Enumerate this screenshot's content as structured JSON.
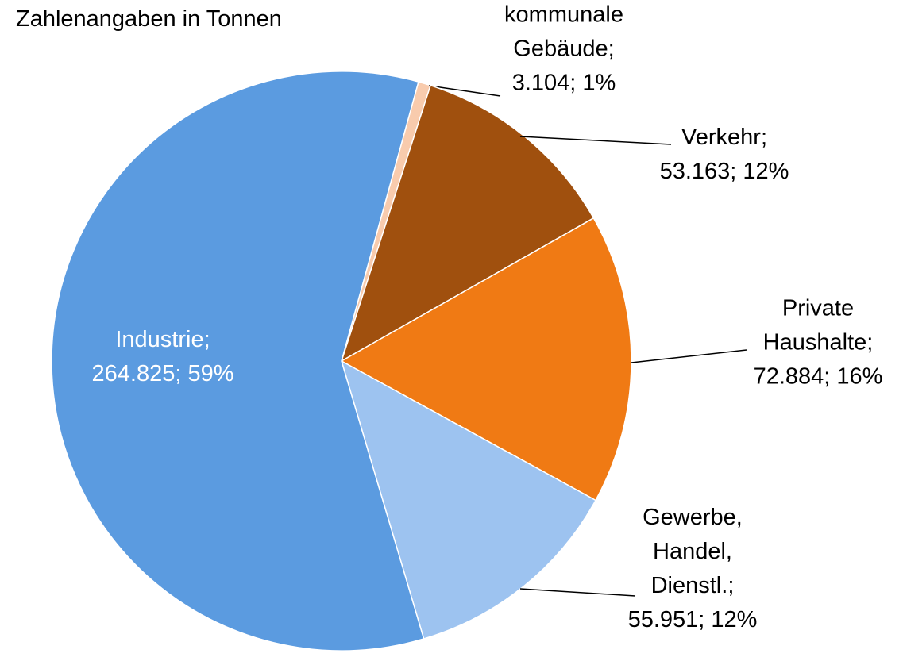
{
  "chart_data": {
    "type": "pie",
    "title": "Zahlenangaben in Tonnen",
    "categories": [
      "kommunale Gebäude",
      "Verkehr",
      "Private Haushalte",
      "Gewerbe, Handel, Dienstl.",
      "Industrie"
    ],
    "values": [
      3104,
      53163,
      72884,
      55951,
      264825
    ],
    "value_labels": [
      "3.104",
      "53.163",
      "72.884",
      "55.951",
      "264.825"
    ],
    "percents": [
      1,
      12,
      16,
      12,
      59
    ],
    "percent_labels": [
      "1%",
      "12%",
      "16%",
      "12%",
      "59%"
    ],
    "separator": ";",
    "colors": [
      "#f8cbad",
      "#a0500e",
      "#f07a14",
      "#9dc3f0",
      "#5b9be0"
    ]
  }
}
